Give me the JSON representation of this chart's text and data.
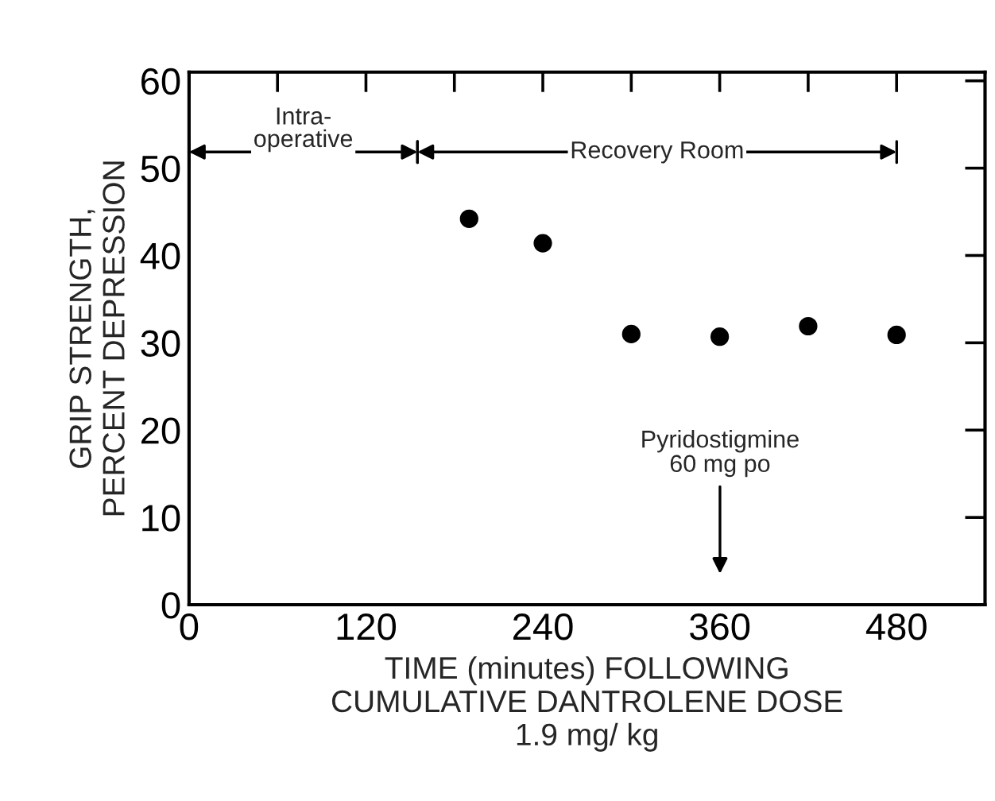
{
  "chart_data": {
    "type": "scatter",
    "xlabel": "TIME (minutes) FOLLOWING\nCUMULATIVE DANTROLENE DOSE\n1.9 mg/ kg",
    "ylabel": "GRIP STRENGTH,\nPERCENT DEPRESSION",
    "x": [
      190,
      240,
      300,
      360,
      420,
      480
    ],
    "values": [
      44.2,
      41.4,
      31.0,
      30.7,
      31.9,
      30.9
    ],
    "color": "#000000",
    "marker": "circle",
    "xlim": [
      0,
      540
    ],
    "ylim": [
      0,
      61
    ],
    "xticks": [
      0,
      {
        "value": 60,
        "label": null
      },
      120,
      {
        "value": 180,
        "label": null
      },
      240,
      {
        "value": 300,
        "label": null
      },
      360,
      {
        "value": 420,
        "label": null
      },
      480
    ],
    "yticks": [
      0,
      10,
      20,
      30,
      40,
      50,
      60
    ],
    "annotations": [
      "Intra-\noperative",
      "Recovery Room",
      "Pyridostigmine\n60 mg po"
    ],
    "grid": false,
    "legend": false
  }
}
